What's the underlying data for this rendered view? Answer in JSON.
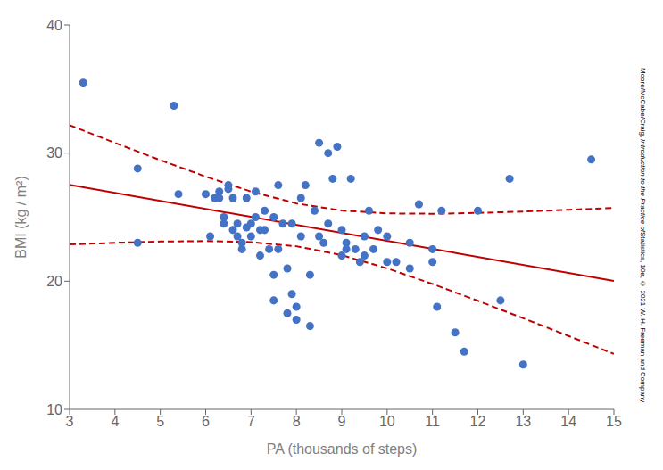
{
  "chart_data": {
    "type": "scatter",
    "xlabel": "PA (thousands of steps)",
    "ylabel": "BMI (kg / m²)",
    "xlim": [
      3,
      15
    ],
    "ylim": [
      10,
      40
    ],
    "xticks": [
      3,
      4,
      5,
      6,
      7,
      8,
      9,
      10,
      11,
      12,
      13,
      14,
      15
    ],
    "yticks": [
      10,
      20,
      30,
      40
    ],
    "grid": false,
    "annotations": [
      "Moore/McCabe/Craig, ",
      "Introduction to the Practice of",
      "Statistics, 10e, © 2021 W. H. Freeman and Company"
    ],
    "series": [
      {
        "type": "scatter",
        "marker": "circle",
        "color": "#4472C4",
        "x": [
          3.3,
          4.5,
          4.5,
          5.3,
          5.4,
          6.0,
          6.1,
          6.2,
          6.3,
          6.3,
          6.4,
          6.4,
          6.5,
          6.5,
          6.6,
          6.6,
          6.7,
          6.7,
          6.8,
          6.8,
          6.9,
          6.9,
          7.0,
          7.0,
          7.1,
          7.1,
          7.2,
          7.2,
          7.3,
          7.3,
          7.4,
          7.5,
          7.5,
          7.5,
          7.6,
          7.6,
          7.7,
          7.8,
          7.8,
          7.9,
          7.9,
          8.0,
          8.0,
          8.1,
          8.1,
          8.2,
          8.3,
          8.3,
          8.4,
          8.5,
          8.5,
          8.6,
          8.7,
          8.7,
          8.8,
          8.9,
          9.0,
          9.0,
          9.1,
          9.1,
          9.2,
          9.3,
          9.4,
          9.5,
          9.5,
          9.6,
          9.7,
          9.8,
          10.0,
          10.0,
          10.2,
          10.5,
          10.5,
          10.7,
          11.0,
          11.0,
          11.1,
          11.2,
          11.5,
          11.7,
          12.0,
          12.5,
          12.7,
          13.0,
          14.5
        ],
        "values": [
          35.5,
          23.0,
          28.8,
          33.7,
          26.8,
          26.8,
          23.5,
          26.5,
          26.5,
          27.0,
          24.5,
          25.0,
          27.2,
          27.5,
          24.0,
          26.5,
          23.5,
          24.5,
          22.5,
          23.0,
          24.2,
          26.5,
          23.5,
          24.5,
          25.0,
          27.0,
          22.0,
          24.0,
          24.0,
          25.5,
          22.5,
          18.5,
          20.5,
          25.0,
          22.5,
          27.5,
          24.5,
          17.5,
          21.0,
          19.0,
          24.5,
          17.0,
          18.0,
          23.5,
          26.5,
          27.5,
          16.5,
          20.5,
          25.5,
          23.5,
          30.8,
          23.0,
          24.5,
          30.0,
          28.0,
          30.5,
          22.0,
          24.0,
          22.5,
          23.0,
          28.0,
          22.5,
          21.5,
          22.0,
          23.5,
          25.5,
          22.5,
          24.0,
          21.5,
          23.5,
          21.5,
          21.0,
          23.0,
          26.0,
          21.5,
          22.5,
          18.0,
          25.5,
          16.0,
          14.5,
          25.5,
          18.5,
          28.0,
          13.5,
          29.5
        ]
      },
      {
        "type": "line",
        "line_style": "solid",
        "color": "#C00000",
        "x": [
          3,
          15
        ],
        "values": [
          27.525,
          20.025
        ]
      },
      {
        "type": "line",
        "line_style": "dashed",
        "color": "#C00000",
        "x": [
          3,
          4,
          5,
          6,
          7,
          8,
          9,
          10,
          11,
          12,
          13,
          14,
          15
        ],
        "values": [
          32.178,
          30.8,
          29.453,
          28.166,
          26.998,
          26.071,
          25.515,
          25.295,
          25.265,
          25.328,
          25.438,
          25.574,
          25.725
        ]
      },
      {
        "type": "line",
        "line_style": "dashed",
        "color": "#C00000",
        "x": [
          3,
          4,
          5,
          6,
          7,
          8,
          9,
          10,
          11,
          12,
          13,
          14,
          15
        ],
        "values": [
          22.872,
          23.0,
          23.097,
          23.134,
          23.052,
          22.729,
          22.035,
          21.005,
          19.785,
          18.472,
          17.112,
          15.726,
          14.325
        ]
      }
    ]
  }
}
